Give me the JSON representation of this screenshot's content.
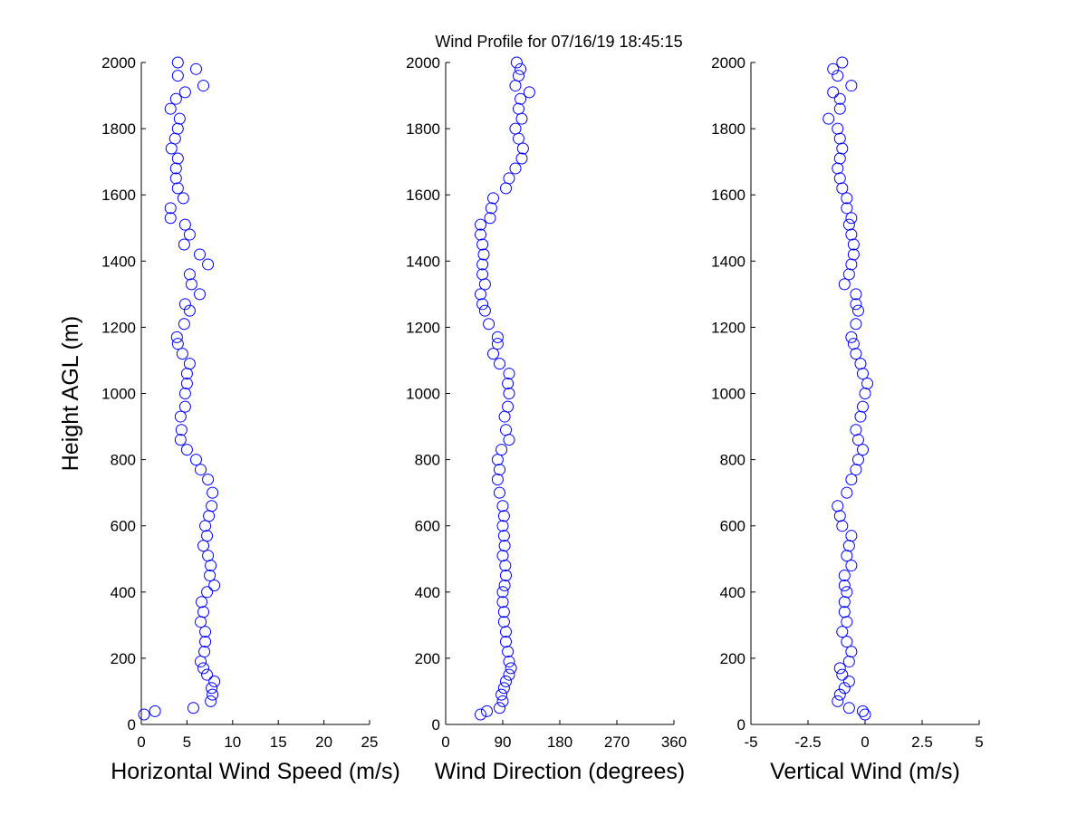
{
  "title": "Wind Profile for  07/16/19 18:45:15",
  "chart_data": [
    {
      "type": "scatter",
      "xlabel": "Horizontal Wind Speed (m/s)",
      "ylabel": "Height AGL (m)",
      "color": "#0000ff",
      "xlim": [
        0,
        25
      ],
      "xticks": [
        0,
        5,
        10,
        15,
        20,
        25
      ],
      "ylim": [
        0,
        2000
      ],
      "yticks": [
        0,
        200,
        400,
        600,
        800,
        1000,
        1200,
        1400,
        1600,
        1800,
        2000
      ],
      "x": [
        0.3,
        1.5,
        5.7,
        7.6,
        7.8,
        7.7,
        8,
        7.2,
        6.8,
        6.5,
        6.9,
        7,
        7,
        6.5,
        6.8,
        6.6,
        7.2,
        8,
        7.5,
        7.6,
        7.3,
        6.8,
        7.2,
        7,
        7.4,
        7.7,
        7.8,
        7.3,
        6.5,
        6,
        5,
        4.3,
        4.4,
        4.3,
        4.8,
        4.8,
        5,
        5,
        5.3,
        4.5,
        4,
        3.9,
        4.7,
        5.3,
        4.8,
        6.4,
        5.5,
        5.3,
        7.3,
        6.4,
        4.7,
        5.3,
        4.8,
        3.2,
        3.2,
        4.6,
        4,
        3.8,
        3.8,
        4,
        3.3,
        3.7,
        4,
        4.2,
        3.2,
        3.8,
        4.8,
        6.8,
        4,
        6,
        4
      ],
      "y": [
        30,
        40,
        50,
        70,
        90,
        110,
        130,
        150,
        170,
        190,
        220,
        250,
        280,
        310,
        340,
        370,
        400,
        420,
        450,
        480,
        510,
        540,
        570,
        600,
        630,
        660,
        700,
        740,
        770,
        800,
        830,
        860,
        890,
        930,
        960,
        1000,
        1030,
        1060,
        1090,
        1120,
        1150,
        1170,
        1210,
        1250,
        1270,
        1300,
        1330,
        1360,
        1390,
        1420,
        1450,
        1480,
        1510,
        1530,
        1560,
        1590,
        1620,
        1650,
        1680,
        1710,
        1740,
        1770,
        1800,
        1830,
        1860,
        1890,
        1910,
        1930,
        1960,
        1980,
        2000
      ]
    },
    {
      "type": "scatter",
      "xlabel": "Wind Direction (degrees)",
      "color": "#0000ff",
      "xlim": [
        0,
        360
      ],
      "xticks": [
        0,
        90,
        180,
        270,
        360
      ],
      "ylim": [
        0,
        2000
      ],
      "yticks": [
        0,
        200,
        400,
        600,
        800,
        1000,
        1200,
        1400,
        1600,
        1800,
        2000
      ],
      "x": [
        55,
        65,
        85,
        90,
        88,
        92,
        95,
        100,
        103,
        100,
        98,
        95,
        95,
        92,
        92,
        90,
        90,
        93,
        95,
        94,
        90,
        93,
        92,
        90,
        92,
        90,
        85,
        82,
        85,
        82,
        88,
        100,
        95,
        93,
        98,
        100,
        98,
        100,
        85,
        75,
        82,
        82,
        68,
        62,
        58,
        55,
        62,
        58,
        58,
        60,
        58,
        55,
        55,
        70,
        72,
        75,
        95,
        100,
        110,
        120,
        122,
        115,
        110,
        120,
        115,
        118,
        132,
        110,
        115,
        118,
        112
      ],
      "y": [
        30,
        40,
        50,
        70,
        90,
        110,
        130,
        150,
        170,
        190,
        220,
        250,
        280,
        310,
        340,
        370,
        400,
        420,
        450,
        480,
        510,
        540,
        570,
        600,
        630,
        660,
        700,
        740,
        770,
        800,
        830,
        860,
        890,
        930,
        960,
        1000,
        1030,
        1060,
        1090,
        1120,
        1150,
        1170,
        1210,
        1250,
        1270,
        1300,
        1330,
        1360,
        1390,
        1420,
        1450,
        1480,
        1510,
        1530,
        1560,
        1590,
        1620,
        1650,
        1680,
        1710,
        1740,
        1770,
        1800,
        1830,
        1860,
        1890,
        1910,
        1930,
        1960,
        1980,
        2000
      ]
    },
    {
      "type": "scatter",
      "xlabel": "Vertical Wind (m/s)",
      "color": "#0000ff",
      "xlim": [
        -5,
        5
      ],
      "xticks": [
        -5,
        -2.5,
        0,
        2.5,
        5
      ],
      "ylim": [
        0,
        2000
      ],
      "yticks": [
        0,
        200,
        400,
        600,
        800,
        1000,
        1200,
        1400,
        1600,
        1800,
        2000
      ],
      "x": [
        0,
        -0.1,
        -0.7,
        -1.2,
        -1.1,
        -0.9,
        -0.7,
        -1.0,
        -1.1,
        -0.7,
        -0.6,
        -0.8,
        -1.0,
        -0.8,
        -0.9,
        -0.9,
        -0.8,
        -0.9,
        -0.9,
        -0.6,
        -0.8,
        -0.7,
        -0.6,
        -1.0,
        -1.1,
        -1.2,
        -0.8,
        -0.6,
        -0.4,
        -0.3,
        -0.1,
        -0.3,
        -0.4,
        -0.2,
        -0.1,
        0,
        0.1,
        -0.1,
        -0.2,
        -0.4,
        -0.5,
        -0.6,
        -0.4,
        -0.3,
        -0.4,
        -0.4,
        -0.9,
        -0.7,
        -0.6,
        -0.5,
        -0.5,
        -0.6,
        -0.7,
        -0.6,
        -0.8,
        -0.8,
        -1.0,
        -1.1,
        -1.2,
        -1.1,
        -1.0,
        -1.1,
        -1.2,
        -1.6,
        -1.1,
        -1.1,
        -1.4,
        -0.6,
        -1.2,
        -1.4,
        -1.0
      ],
      "y": [
        30,
        40,
        50,
        70,
        90,
        110,
        130,
        150,
        170,
        190,
        220,
        250,
        280,
        310,
        340,
        370,
        400,
        420,
        450,
        480,
        510,
        540,
        570,
        600,
        630,
        660,
        700,
        740,
        770,
        800,
        830,
        860,
        890,
        930,
        960,
        1000,
        1030,
        1060,
        1090,
        1120,
        1150,
        1170,
        1210,
        1250,
        1270,
        1300,
        1330,
        1360,
        1390,
        1420,
        1450,
        1480,
        1510,
        1530,
        1560,
        1590,
        1620,
        1650,
        1680,
        1710,
        1740,
        1770,
        1800,
        1830,
        1860,
        1890,
        1910,
        1930,
        1960,
        1980,
        2000
      ]
    }
  ]
}
